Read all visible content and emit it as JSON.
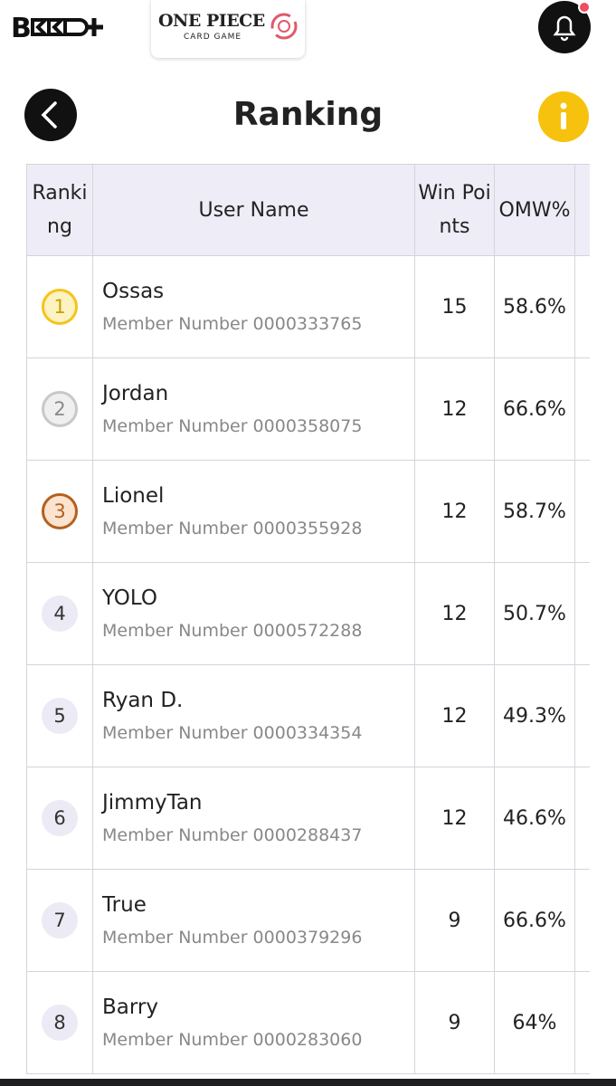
{
  "header": {
    "brand": "ONE PIECE",
    "brand_sub": "CARD GAME"
  },
  "title": "Ranking",
  "table": {
    "columns": [
      "Ranking",
      "User Name",
      "Win Points",
      "OMW%"
    ],
    "rows": [
      {
        "rank": 1,
        "name": "Ossas",
        "member": "Member Number 0000333765",
        "win_points": 15,
        "omw": "58.6%"
      },
      {
        "rank": 2,
        "name": "Jordan",
        "member": "Member Number 0000358075",
        "win_points": 12,
        "omw": "66.6%"
      },
      {
        "rank": 3,
        "name": "Lionel",
        "member": "Member Number 0000355928",
        "win_points": 12,
        "omw": "58.7%"
      },
      {
        "rank": 4,
        "name": "YOLO",
        "member": "Member Number 0000572288",
        "win_points": 12,
        "omw": "50.7%"
      },
      {
        "rank": 5,
        "name": "Ryan D.",
        "member": "Member Number 0000334354",
        "win_points": 12,
        "omw": "49.3%"
      },
      {
        "rank": 6,
        "name": "JimmyTan",
        "member": "Member Number 0000288437",
        "win_points": 12,
        "omw": "46.6%"
      },
      {
        "rank": 7,
        "name": "True",
        "member": "Member Number 0000379296",
        "win_points": 9,
        "omw": "66.6%"
      },
      {
        "rank": 8,
        "name": "Barry",
        "member": "Member Number 0000283060",
        "win_points": 9,
        "omw": "64%"
      }
    ]
  }
}
